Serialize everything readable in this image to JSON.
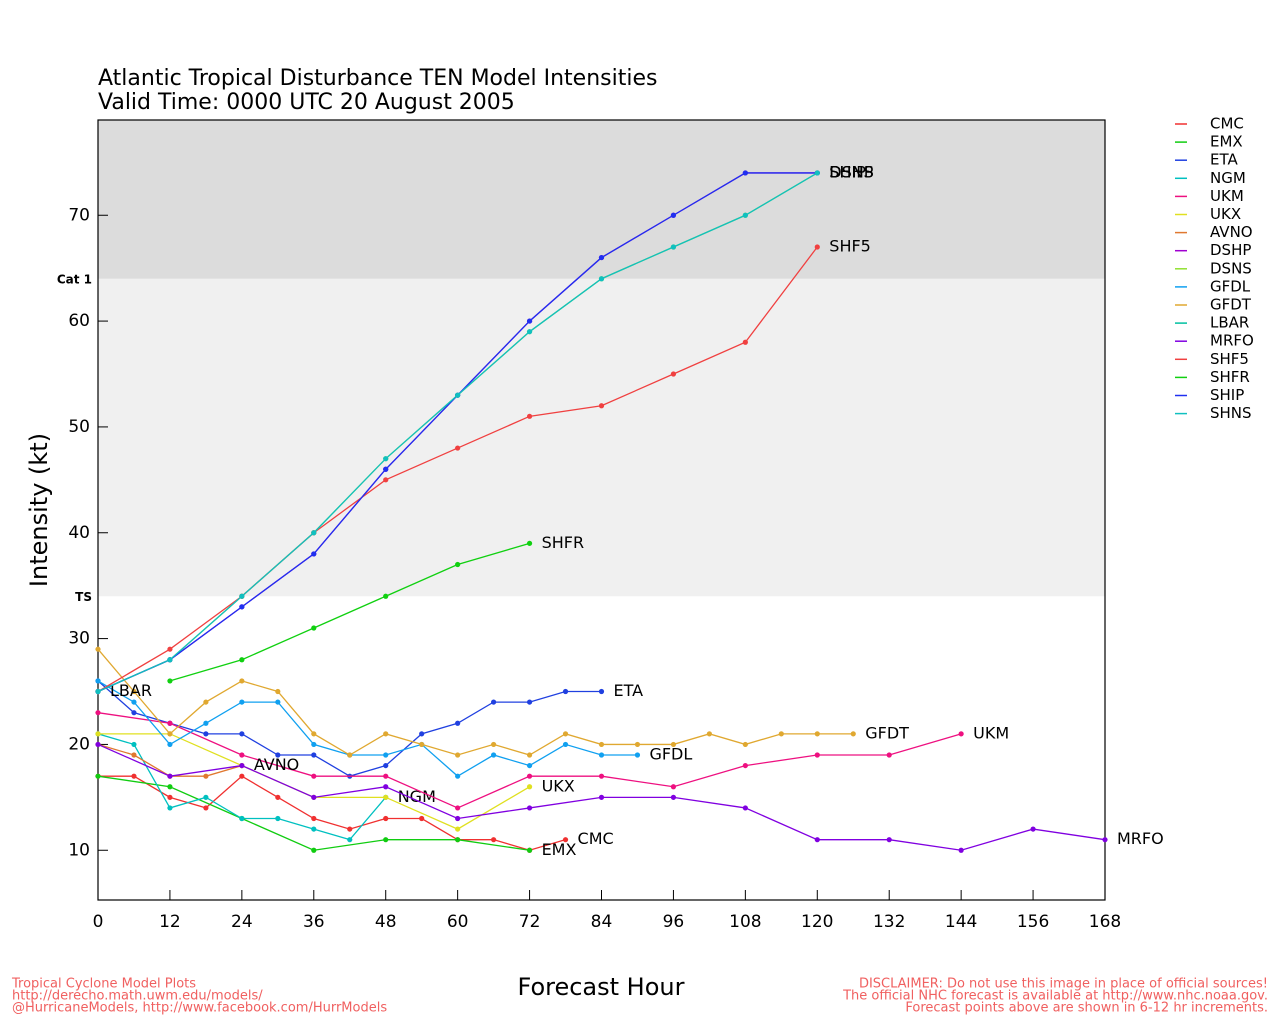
{
  "chart_data": {
    "type": "line",
    "title": "Atlantic Tropical Disturbance TEN Model Intensities",
    "subtitle": "Valid Time: 0000 UTC 20 August 2005",
    "x_label": "Forecast Hour",
    "y_label": "Intensity (kt)",
    "xlim": [
      0,
      168
    ],
    "xticks": [
      0,
      12,
      24,
      36,
      48,
      60,
      72,
      84,
      96,
      108,
      120,
      132,
      144,
      156,
      168
    ],
    "ylim": [
      5.3,
      79
    ],
    "yticks": [
      10,
      20,
      30,
      40,
      50,
      60,
      70
    ],
    "thresholds": [
      {
        "value": 34,
        "label": "TS"
      },
      {
        "value": 64,
        "label": "Cat 1"
      }
    ],
    "series": [
      {
        "name": "CMC",
        "color": "#f03030",
        "x": [
          0,
          6,
          12,
          18,
          24,
          30,
          36,
          42,
          48,
          54,
          60,
          66,
          72,
          78
        ],
        "values": [
          17,
          17,
          15,
          14,
          17,
          15,
          13,
          12,
          13,
          13,
          11,
          11,
          10,
          11
        ]
      },
      {
        "name": "EMX",
        "color": "#10cc10",
        "x": [
          0,
          12,
          24,
          36,
          48,
          60,
          72
        ],
        "values": [
          17,
          16,
          13,
          10,
          11,
          11,
          10
        ]
      },
      {
        "name": "ETA",
        "color": "#2040e0",
        "x": [
          0,
          6,
          12,
          18,
          24,
          30,
          36,
          42,
          48,
          54,
          60,
          66,
          72,
          78,
          84
        ],
        "values": [
          26,
          23,
          22,
          21,
          21,
          19,
          19,
          17,
          18,
          21,
          22,
          24,
          24,
          25,
          25
        ]
      },
      {
        "name": "NGM",
        "color": "#00c0c0",
        "x": [
          0,
          6,
          12,
          18,
          24,
          30,
          36,
          42,
          48
        ],
        "values": [
          21,
          20,
          14,
          15,
          13,
          13,
          12,
          11,
          15
        ]
      },
      {
        "name": "UKM",
        "color": "#ee1080",
        "x": [
          0,
          12,
          24,
          36,
          48,
          60,
          72,
          84,
          96,
          108,
          120,
          132,
          144
        ],
        "values": [
          23,
          22,
          19,
          17,
          17,
          14,
          17,
          17,
          16,
          18,
          19,
          19,
          21
        ]
      },
      {
        "name": "UKX",
        "color": "#e0e020",
        "x": [
          0,
          12,
          24,
          36,
          48,
          60,
          72
        ],
        "values": [
          21,
          21,
          18,
          15,
          15,
          12,
          16
        ]
      },
      {
        "name": "AVNO",
        "color": "#e07830",
        "x": [
          0,
          6,
          12,
          18,
          24
        ],
        "values": [
          20,
          19,
          17,
          17,
          18
        ]
      },
      {
        "name": "DSHP",
        "color": "#a000d0",
        "x": [
          0,
          12,
          24,
          36,
          48,
          60,
          72,
          84,
          96,
          108,
          120
        ],
        "values": [
          25,
          28,
          33,
          38,
          46,
          53,
          60,
          66,
          70,
          74,
          74
        ]
      },
      {
        "name": "DSNS",
        "color": "#90e030",
        "x": [
          0,
          12,
          24,
          36,
          48,
          60,
          72,
          84,
          96,
          108,
          120
        ],
        "values": [
          25,
          28,
          34,
          40,
          47,
          53,
          59,
          64,
          67,
          70,
          74
        ]
      },
      {
        "name": "GFDL",
        "color": "#10a0f0",
        "x": [
          0,
          6,
          12,
          18,
          24,
          30,
          36,
          42,
          48,
          54,
          60,
          66,
          72,
          78,
          84,
          90
        ],
        "values": [
          26,
          24,
          20,
          22,
          24,
          24,
          20,
          19,
          19,
          20,
          17,
          19,
          18,
          20,
          19,
          19
        ]
      },
      {
        "name": "GFDT",
        "color": "#e0a830",
        "x": [
          0,
          6,
          12,
          18,
          24,
          30,
          36,
          42,
          48,
          54,
          60,
          66,
          72,
          78,
          84,
          90,
          96,
          102,
          108,
          114,
          120,
          126
        ],
        "values": [
          29,
          25,
          21,
          24,
          26,
          25,
          21,
          19,
          21,
          20,
          19,
          20,
          19,
          21,
          20,
          20,
          20,
          21,
          20,
          21,
          21,
          21
        ]
      },
      {
        "name": "LBAR",
        "color": "#00c0a0",
        "x": [
          0
        ],
        "values": [
          25
        ]
      },
      {
        "name": "MRFO",
        "color": "#8000e0",
        "x": [
          0,
          12,
          24,
          36,
          48,
          60,
          72,
          84,
          96,
          108,
          120,
          132,
          144,
          156,
          168
        ],
        "values": [
          20,
          17,
          18,
          15,
          16,
          13,
          14,
          15,
          15,
          14,
          11,
          11,
          10,
          12,
          11
        ]
      },
      {
        "name": "SHF5",
        "color": "#f04040",
        "x": [
          0,
          12,
          24,
          36,
          48,
          60,
          72,
          84,
          96,
          108,
          120
        ],
        "values": [
          25,
          29,
          34,
          40,
          45,
          48,
          51,
          52,
          55,
          58,
          67
        ]
      },
      {
        "name": "SHFR",
        "color": "#10d010",
        "x": [
          12,
          24,
          36,
          48,
          60,
          72
        ],
        "values": [
          26,
          28,
          31,
          34,
          37,
          39
        ]
      },
      {
        "name": "SHIP",
        "color": "#2030f0",
        "x": [
          0,
          12,
          24,
          36,
          48,
          60,
          72,
          84,
          96,
          108,
          120
        ],
        "values": [
          25,
          28,
          33,
          38,
          46,
          53,
          60,
          66,
          70,
          74,
          74
        ]
      },
      {
        "name": "SHNS",
        "color": "#10c0c0",
        "x": [
          0,
          12,
          24,
          36,
          48,
          60,
          72,
          84,
          96,
          108,
          120
        ],
        "values": [
          25,
          28,
          34,
          40,
          47,
          53,
          59,
          64,
          67,
          70,
          74
        ]
      }
    ],
    "footer_left": [
      "Tropical Cyclone Model Plots",
      "http://derecho.math.uwm.edu/models/",
      "@HurricaneModels, http://www.facebook.com/HurrModels"
    ],
    "footer_right": [
      "DISCLAIMER: Do not use this image in place of official sources!",
      "The official NHC forecast is available at http://www.nhc.noaa.gov.",
      "Forecast points above are shown in 6-12 hr increments."
    ]
  }
}
